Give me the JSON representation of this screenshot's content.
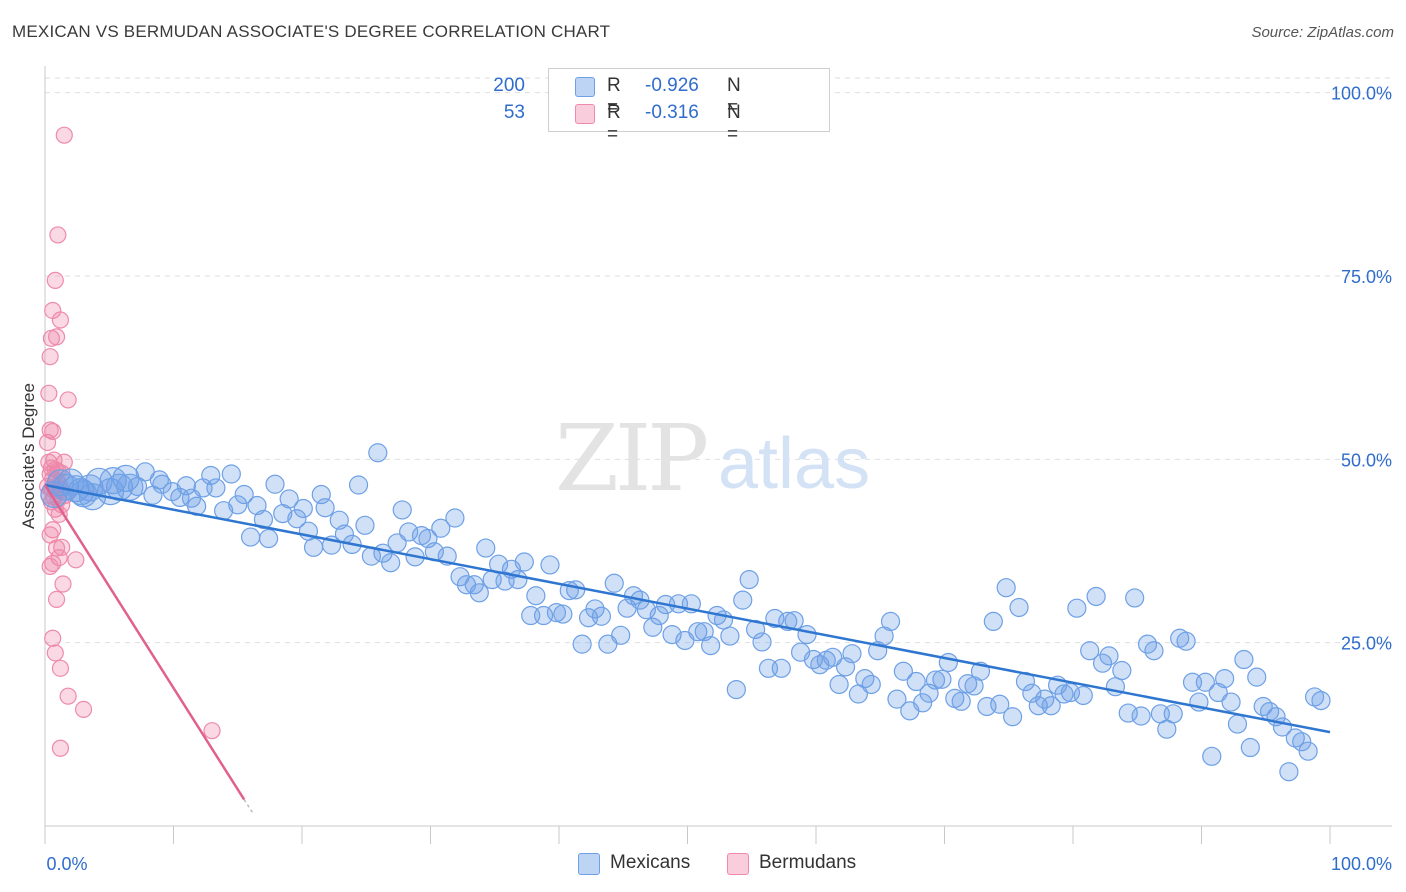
{
  "title": "MEXICAN VS BERMUDAN ASSOCIATE'S DEGREE CORRELATION CHART",
  "source": "Source: ZipAtlas.com",
  "watermark": {
    "zip": "ZIP",
    "atlas": "atlas"
  },
  "colors": {
    "blue": "#6ea0e6",
    "blue_fill": "rgba(110,160,230,0.32)",
    "blue_line": "#2e76d0",
    "pink": "#ee8aaa",
    "pink_fill": "rgba(240,130,165,0.30)",
    "pink_line": "#e0608e",
    "value_text": "#2f6dcc",
    "grid": "#dedede"
  },
  "stats": [
    {
      "r_label": "R =",
      "r_value": "-0.926",
      "n_label": "N =",
      "n_value": "200",
      "color": "#6ea0e6"
    },
    {
      "r_label": "R =",
      "r_value": "-0.316",
      "n_label": "N =",
      "n_value": "53",
      "color": "#ee8aaa"
    }
  ],
  "legend": [
    {
      "label": "Mexicans",
      "color": "#6ea0e6"
    },
    {
      "label": "Bermudans",
      "color": "#ee8aaa"
    }
  ],
  "chart_data": {
    "type": "scatter",
    "title": "MEXICAN VS BERMUDAN ASSOCIATE'S DEGREE CORRELATION CHART",
    "xlabel": "",
    "ylabel": "Associate's Degree",
    "xlim": [
      0,
      100
    ],
    "ylim": [
      0,
      102
    ],
    "x_tick_labels": [
      "0.0%",
      "100.0%"
    ],
    "y_ticks": [
      25,
      50,
      75,
      100
    ],
    "y_tick_labels": [
      "25.0%",
      "50.0%",
      "75.0%",
      "100.0%"
    ],
    "grid": true,
    "legend_position": "bottom-center",
    "series": [
      {
        "name": "Mexicans",
        "trend": {
          "x": [
            0,
            100
          ],
          "y": [
            46.5,
            12.8
          ]
        },
        "points": [
          [
            1.2,
            46.8
          ],
          [
            1.6,
            46.2
          ],
          [
            2.0,
            46.9
          ],
          [
            2.4,
            46.0
          ],
          [
            3.0,
            45.3
          ],
          [
            3.5,
            46.1
          ],
          [
            4.2,
            47.0
          ],
          [
            5.1,
            45.6
          ],
          [
            5.8,
            46.2
          ],
          [
            6.3,
            47.4
          ],
          [
            7.2,
            46.3
          ],
          [
            7.8,
            48.3
          ],
          [
            8.4,
            45.1
          ],
          [
            9.1,
            46.6
          ],
          [
            9.9,
            45.6
          ],
          [
            10.5,
            44.8
          ],
          [
            11.0,
            46.4
          ],
          [
            11.8,
            43.6
          ],
          [
            12.3,
            46.1
          ],
          [
            12.9,
            47.8
          ],
          [
            13.3,
            46.1
          ],
          [
            13.9,
            43.0
          ],
          [
            14.5,
            48.0
          ],
          [
            15.0,
            43.8
          ],
          [
            15.5,
            45.2
          ],
          [
            16.0,
            39.4
          ],
          [
            16.5,
            43.7
          ],
          [
            17.0,
            41.8
          ],
          [
            17.4,
            39.2
          ],
          [
            17.9,
            46.6
          ],
          [
            18.5,
            42.6
          ],
          [
            19.0,
            44.6
          ],
          [
            19.6,
            41.9
          ],
          [
            20.1,
            43.3
          ],
          [
            20.5,
            40.2
          ],
          [
            20.9,
            38.0
          ],
          [
            21.5,
            45.2
          ],
          [
            21.8,
            43.4
          ],
          [
            22.3,
            38.3
          ],
          [
            22.9,
            41.7
          ],
          [
            23.3,
            39.8
          ],
          [
            23.9,
            38.4
          ],
          [
            24.4,
            46.5
          ],
          [
            24.9,
            41.0
          ],
          [
            25.4,
            36.8
          ],
          [
            25.9,
            50.9
          ],
          [
            26.3,
            37.2
          ],
          [
            26.9,
            35.9
          ],
          [
            27.4,
            38.6
          ],
          [
            27.8,
            43.1
          ],
          [
            28.3,
            40.1
          ],
          [
            28.8,
            36.7
          ],
          [
            29.3,
            39.6
          ],
          [
            29.8,
            39.2
          ],
          [
            30.3,
            37.4
          ],
          [
            30.8,
            40.6
          ],
          [
            31.3,
            36.8
          ],
          [
            31.9,
            42.0
          ],
          [
            32.3,
            34.0
          ],
          [
            32.8,
            32.9
          ],
          [
            33.4,
            32.9
          ],
          [
            33.8,
            31.8
          ],
          [
            34.3,
            37.9
          ],
          [
            34.8,
            33.6
          ],
          [
            35.3,
            35.7
          ],
          [
            35.8,
            33.4
          ],
          [
            36.3,
            35.0
          ],
          [
            36.8,
            33.6
          ],
          [
            37.3,
            36.0
          ],
          [
            37.8,
            28.7
          ],
          [
            38.2,
            31.4
          ],
          [
            38.8,
            28.7
          ],
          [
            39.3,
            35.6
          ],
          [
            39.8,
            29.1
          ],
          [
            40.3,
            28.9
          ],
          [
            40.8,
            32.1
          ],
          [
            41.3,
            32.2
          ],
          [
            41.8,
            24.8
          ],
          [
            42.3,
            28.4
          ],
          [
            42.8,
            29.6
          ],
          [
            43.3,
            28.6
          ],
          [
            43.8,
            24.8
          ],
          [
            44.3,
            33.1
          ],
          [
            44.8,
            26.0
          ],
          [
            45.3,
            29.7
          ],
          [
            45.8,
            31.4
          ],
          [
            46.3,
            30.8
          ],
          [
            46.8,
            29.5
          ],
          [
            47.3,
            27.1
          ],
          [
            47.8,
            28.7
          ],
          [
            48.3,
            30.2
          ],
          [
            48.8,
            26.1
          ],
          [
            49.3,
            30.3
          ],
          [
            49.8,
            25.3
          ],
          [
            50.3,
            30.3
          ],
          [
            50.8,
            26.5
          ],
          [
            51.3,
            26.5
          ],
          [
            51.8,
            24.6
          ],
          [
            52.3,
            28.7
          ],
          [
            52.8,
            28.1
          ],
          [
            53.3,
            25.9
          ],
          [
            53.8,
            18.6
          ],
          [
            54.3,
            30.8
          ],
          [
            54.8,
            33.6
          ],
          [
            55.3,
            26.8
          ],
          [
            55.8,
            25.1
          ],
          [
            56.3,
            21.5
          ],
          [
            56.8,
            28.3
          ],
          [
            57.3,
            21.5
          ],
          [
            57.8,
            27.9
          ],
          [
            58.3,
            28.0
          ],
          [
            58.8,
            23.7
          ],
          [
            59.3,
            26.1
          ],
          [
            59.8,
            22.7
          ],
          [
            60.3,
            22.0
          ],
          [
            60.8,
            22.6
          ],
          [
            61.3,
            23.0
          ],
          [
            61.8,
            19.3
          ],
          [
            62.3,
            21.7
          ],
          [
            62.8,
            23.5
          ],
          [
            63.3,
            18.0
          ],
          [
            63.8,
            20.1
          ],
          [
            64.3,
            19.3
          ],
          [
            64.8,
            23.9
          ],
          [
            65.3,
            25.9
          ],
          [
            65.8,
            27.9
          ],
          [
            66.3,
            17.3
          ],
          [
            66.8,
            21.1
          ],
          [
            67.3,
            15.7
          ],
          [
            67.8,
            19.7
          ],
          [
            68.3,
            16.8
          ],
          [
            68.8,
            18.1
          ],
          [
            69.3,
            19.9
          ],
          [
            69.8,
            20.0
          ],
          [
            70.3,
            22.3
          ],
          [
            70.8,
            17.4
          ],
          [
            71.3,
            17.0
          ],
          [
            71.8,
            19.4
          ],
          [
            72.3,
            19.1
          ],
          [
            72.8,
            21.1
          ],
          [
            73.3,
            16.3
          ],
          [
            73.8,
            27.9
          ],
          [
            74.3,
            16.6
          ],
          [
            74.8,
            32.5
          ],
          [
            75.3,
            14.9
          ],
          [
            75.8,
            29.8
          ],
          [
            76.3,
            19.7
          ],
          [
            76.8,
            18.1
          ],
          [
            77.3,
            16.4
          ],
          [
            77.8,
            17.3
          ],
          [
            78.3,
            16.4
          ],
          [
            78.8,
            19.2
          ],
          [
            79.3,
            18.0
          ],
          [
            79.8,
            18.2
          ],
          [
            80.3,
            29.7
          ],
          [
            80.8,
            17.8
          ],
          [
            81.3,
            23.9
          ],
          [
            81.8,
            31.3
          ],
          [
            82.3,
            22.2
          ],
          [
            82.8,
            23.2
          ],
          [
            83.3,
            19.0
          ],
          [
            83.8,
            21.2
          ],
          [
            84.3,
            15.4
          ],
          [
            84.8,
            31.1
          ],
          [
            85.3,
            15.0
          ],
          [
            85.8,
            24.8
          ],
          [
            86.3,
            23.9
          ],
          [
            86.8,
            15.3
          ],
          [
            87.3,
            13.2
          ],
          [
            87.8,
            15.3
          ],
          [
            88.3,
            25.6
          ],
          [
            88.8,
            25.2
          ],
          [
            89.3,
            19.6
          ],
          [
            89.8,
            16.9
          ],
          [
            90.3,
            19.6
          ],
          [
            90.8,
            9.5
          ],
          [
            91.3,
            18.2
          ],
          [
            91.8,
            20.1
          ],
          [
            92.3,
            16.9
          ],
          [
            92.8,
            13.9
          ],
          [
            93.3,
            22.7
          ],
          [
            93.8,
            10.7
          ],
          [
            94.3,
            20.3
          ],
          [
            94.8,
            16.3
          ],
          [
            95.3,
            15.6
          ],
          [
            95.8,
            14.9
          ],
          [
            96.3,
            13.5
          ],
          [
            96.8,
            7.4
          ],
          [
            97.3,
            12.0
          ],
          [
            97.8,
            11.5
          ],
          [
            98.3,
            10.2
          ],
          [
            98.8,
            17.6
          ],
          [
            99.3,
            17.1
          ],
          [
            0.7,
            45.2
          ],
          [
            2.8,
            45.6
          ],
          [
            3.7,
            44.9
          ],
          [
            5.3,
            47.1
          ],
          [
            6.6,
            46.2
          ],
          [
            8.9,
            47.2
          ],
          [
            11.4,
            44.7
          ]
        ]
      },
      {
        "name": "Bermudans",
        "trend": {
          "x": [
            0,
            15.5
          ],
          "y": [
            46.5,
            3.6
          ]
        },
        "trend_dashed": {
          "x": [
            15.5,
            16.2
          ],
          "y": [
            3.6,
            1.7
          ]
        },
        "points": [
          [
            1.5,
            94.2
          ],
          [
            1.0,
            80.6
          ],
          [
            0.8,
            74.4
          ],
          [
            0.6,
            70.3
          ],
          [
            1.2,
            69.0
          ],
          [
            0.5,
            66.5
          ],
          [
            0.9,
            66.7
          ],
          [
            0.4,
            64.0
          ],
          [
            0.3,
            59.0
          ],
          [
            1.8,
            58.1
          ],
          [
            0.4,
            54.0
          ],
          [
            0.6,
            53.8
          ],
          [
            0.2,
            52.3
          ],
          [
            0.7,
            49.9
          ],
          [
            1.5,
            49.6
          ],
          [
            0.3,
            49.6
          ],
          [
            0.5,
            48.8
          ],
          [
            0.8,
            48.6
          ],
          [
            1.0,
            48.4
          ],
          [
            1.3,
            48.1
          ],
          [
            0.4,
            48.0
          ],
          [
            0.6,
            47.3
          ],
          [
            0.9,
            47.1
          ],
          [
            1.1,
            46.6
          ],
          [
            0.2,
            46.3
          ],
          [
            0.5,
            46.0
          ],
          [
            0.8,
            45.9
          ],
          [
            1.2,
            45.8
          ],
          [
            1.6,
            45.1
          ],
          [
            0.3,
            45.1
          ],
          [
            0.7,
            44.9
          ],
          [
            1.0,
            44.5
          ],
          [
            0.5,
            44.2
          ],
          [
            1.3,
            43.8
          ],
          [
            0.8,
            43.2
          ],
          [
            1.1,
            42.5
          ],
          [
            0.6,
            40.4
          ],
          [
            0.4,
            39.7
          ],
          [
            1.3,
            38.0
          ],
          [
            0.9,
            37.9
          ],
          [
            1.1,
            36.6
          ],
          [
            0.6,
            35.8
          ],
          [
            2.4,
            36.3
          ],
          [
            0.4,
            35.4
          ],
          [
            1.4,
            33.0
          ],
          [
            0.9,
            30.9
          ],
          [
            0.6,
            25.6
          ],
          [
            0.8,
            23.6
          ],
          [
            1.2,
            21.5
          ],
          [
            1.8,
            17.7
          ],
          [
            3.0,
            15.9
          ],
          [
            1.2,
            10.6
          ],
          [
            13.0,
            13.0
          ]
        ]
      }
    ]
  }
}
